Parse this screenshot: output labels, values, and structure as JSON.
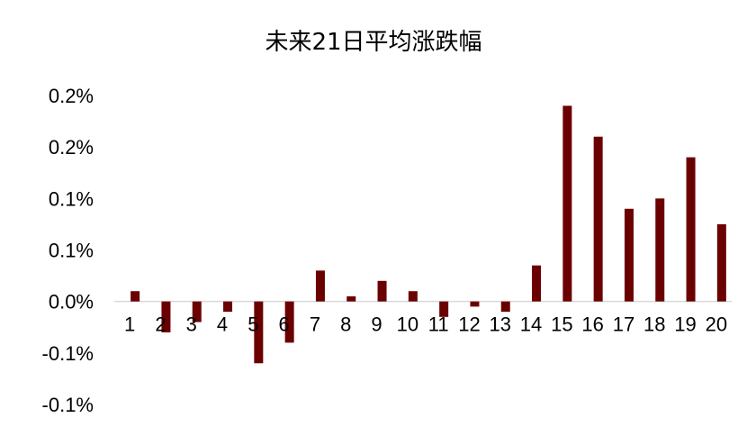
{
  "chart_data": {
    "type": "bar",
    "title": "未来21日平均涨跌幅",
    "xlabel": "",
    "ylabel": "",
    "categories": [
      "1",
      "2",
      "3",
      "4",
      "5",
      "6",
      "7",
      "8",
      "9",
      "10",
      "11",
      "12",
      "13",
      "14",
      "15",
      "16",
      "17",
      "18",
      "19",
      "20"
    ],
    "series": [
      {
        "values": [
          0.0001,
          -0.0003,
          -0.0002,
          -0.0001,
          -0.0006,
          -0.0004,
          0.0003,
          5e-05,
          0.0002,
          0.0001,
          -0.00015,
          -5e-05,
          -0.0001,
          0.00035,
          0.0019,
          0.0016,
          0.0009,
          0.001,
          0.0014,
          0.00075
        ]
      }
    ],
    "ylim": [
      -0.001,
      0.002
    ],
    "yticks": [
      0.002,
      0.0015,
      0.001,
      0.0005,
      0.0,
      -0.0005,
      -0.001
    ],
    "ytick_labels": [
      "0.2%",
      "0.2%",
      "0.1%",
      "0.1%",
      "0.0%",
      "-0.1%",
      "-0.1%"
    ],
    "grid": false,
    "legend": "none",
    "bar_color": "#6b0000",
    "axis_color": "#d9d9d9"
  }
}
